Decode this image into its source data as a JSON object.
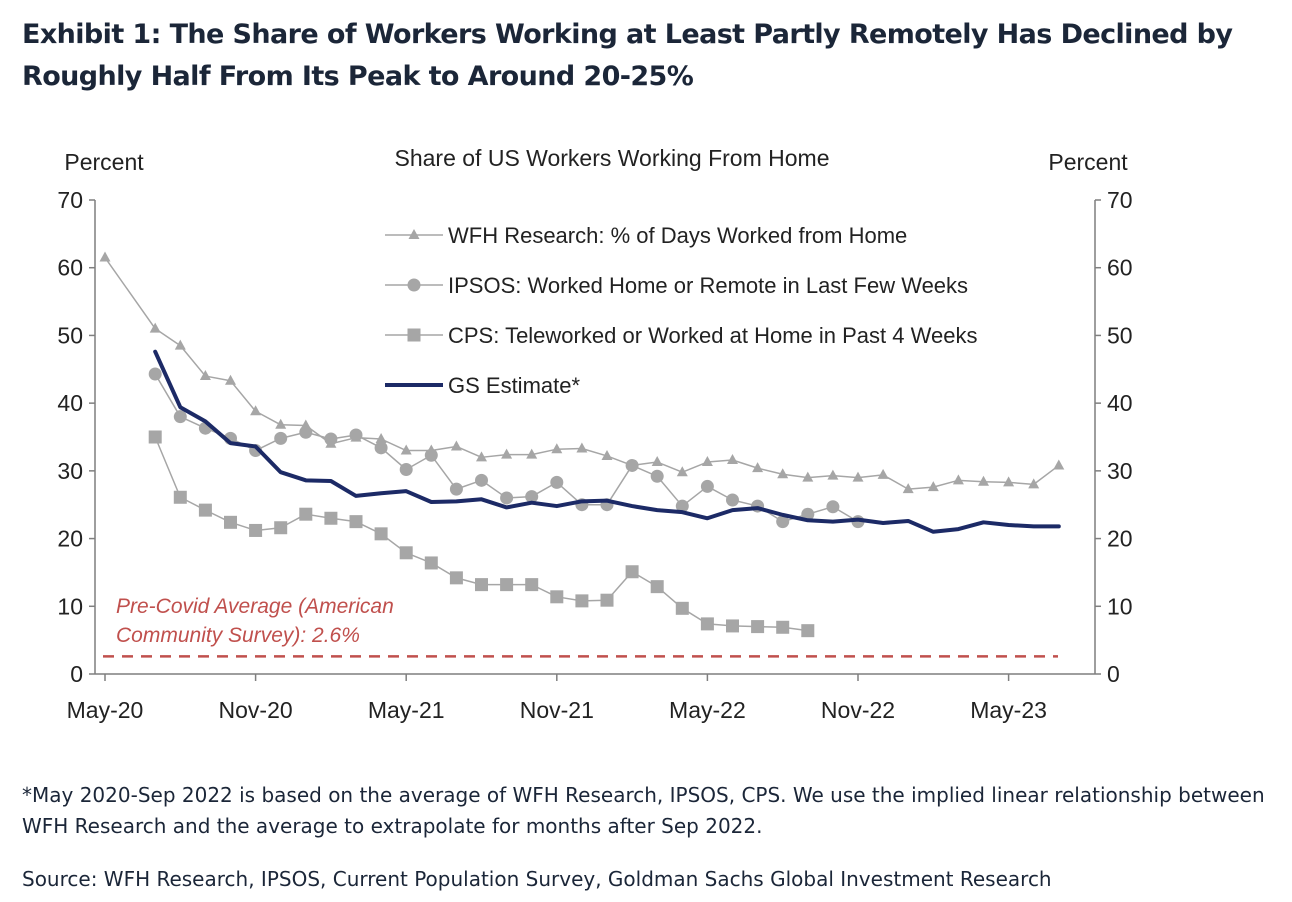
{
  "title": "Exhibit 1: The Share of Workers Working at Least Partly Remotely Has Declined by Roughly Half From Its Peak to Around 20-25%",
  "footnote": "*May 2020-Sep 2022 is based on the average of WFH Research, IPSOS, CPS. We use the implied linear relationship between WFH Research and the average to extrapolate for months after Sep 2022.",
  "source": "Source: WFH Research, IPSOS, Current Population Survey, Goldman Sachs Global Investment Research",
  "chart_data": {
    "type": "line",
    "title": "Share of US Workers Working From Home",
    "ylabel_left": "Percent",
    "ylabel_right": "Percent",
    "ylim": [
      0,
      70
    ],
    "yticks": [
      0,
      10,
      20,
      30,
      40,
      50,
      60,
      70
    ],
    "x_ticks": [
      "May-20",
      "Nov-20",
      "May-21",
      "Nov-21",
      "May-22",
      "Nov-22",
      "May-23"
    ],
    "x_months": [
      "2020-05",
      "2020-06",
      "2020-07",
      "2020-08",
      "2020-09",
      "2020-10",
      "2020-11",
      "2020-12",
      "2021-01",
      "2021-02",
      "2021-03",
      "2021-04",
      "2021-05",
      "2021-06",
      "2021-07",
      "2021-08",
      "2021-09",
      "2021-10",
      "2021-11",
      "2021-12",
      "2022-01",
      "2022-02",
      "2022-03",
      "2022-04",
      "2022-05",
      "2022-06",
      "2022-07",
      "2022-08",
      "2022-09",
      "2022-10",
      "2022-11",
      "2022-12",
      "2023-01",
      "2023-02",
      "2023-03",
      "2023-04",
      "2023-05",
      "2023-06",
      "2023-07",
      "2023-08"
    ],
    "legend_position": "top-center",
    "grid": false,
    "series": [
      {
        "name": "WFH Research: % of Days Worked from Home",
        "color": "#a6a6a6",
        "marker": "triangle",
        "values": [
          61.5,
          null,
          51.0,
          48.5,
          44.0,
          43.3,
          38.8,
          36.8,
          36.7,
          34.0,
          34.9,
          34.7,
          33.0,
          33.0,
          33.6,
          32.0,
          32.4,
          32.4,
          33.2,
          33.3,
          32.2,
          30.8,
          31.3,
          29.8,
          31.3,
          31.6,
          30.4,
          29.5,
          29.0,
          29.3,
          29.0,
          29.4,
          27.3,
          27.6,
          28.6,
          28.4,
          28.3,
          28.0,
          30.8,
          null
        ]
      },
      {
        "name": "IPSOS: Worked Home or Remote in Last Few Weeks",
        "color": "#a6a6a6",
        "marker": "circle",
        "values": [
          null,
          null,
          44.3,
          38.0,
          36.3,
          34.8,
          33.0,
          34.8,
          35.7,
          34.7,
          35.3,
          33.4,
          30.2,
          32.3,
          27.3,
          28.6,
          26.0,
          26.2,
          28.3,
          25.0,
          25.0,
          30.8,
          29.2,
          24.8,
          27.7,
          25.7,
          24.8,
          22.5,
          23.6,
          24.7,
          22.5,
          null,
          null,
          null,
          null,
          null,
          null,
          null,
          null,
          null
        ]
      },
      {
        "name": "CPS: Teleworked or Worked at Home in Past 4 Weeks",
        "color": "#a6a6a6",
        "marker": "square",
        "values": [
          null,
          null,
          35.0,
          26.1,
          24.2,
          22.4,
          21.2,
          21.6,
          23.6,
          23.0,
          22.5,
          20.7,
          17.9,
          16.4,
          14.2,
          13.2,
          13.2,
          13.2,
          11.4,
          10.8,
          10.9,
          15.1,
          12.9,
          9.7,
          7.4,
          7.1,
          7.0,
          6.9,
          6.4,
          null,
          null,
          null,
          null,
          null,
          null,
          null,
          null,
          null,
          null,
          null
        ]
      },
      {
        "name": "GS Estimate*",
        "color": "#1c2a66",
        "marker": "none",
        "values": [
          null,
          null,
          47.6,
          39.4,
          37.3,
          34.1,
          33.6,
          29.8,
          28.6,
          28.5,
          26.3,
          26.7,
          27.0,
          25.4,
          25.5,
          25.8,
          24.6,
          25.3,
          24.8,
          25.5,
          25.6,
          24.8,
          24.2,
          23.9,
          23.0,
          24.2,
          24.5,
          23.5,
          22.7,
          22.5,
          22.8,
          22.3,
          22.6,
          21.0,
          21.4,
          22.4,
          22.0,
          21.8,
          21.8,
          null
        ]
      }
    ],
    "reference_line": {
      "value": 2.6,
      "color": "#c0504d",
      "style": "dashed",
      "label_lines": [
        "Pre-Covid Average (American",
        "Community Survey): 2.6%"
      ]
    }
  }
}
